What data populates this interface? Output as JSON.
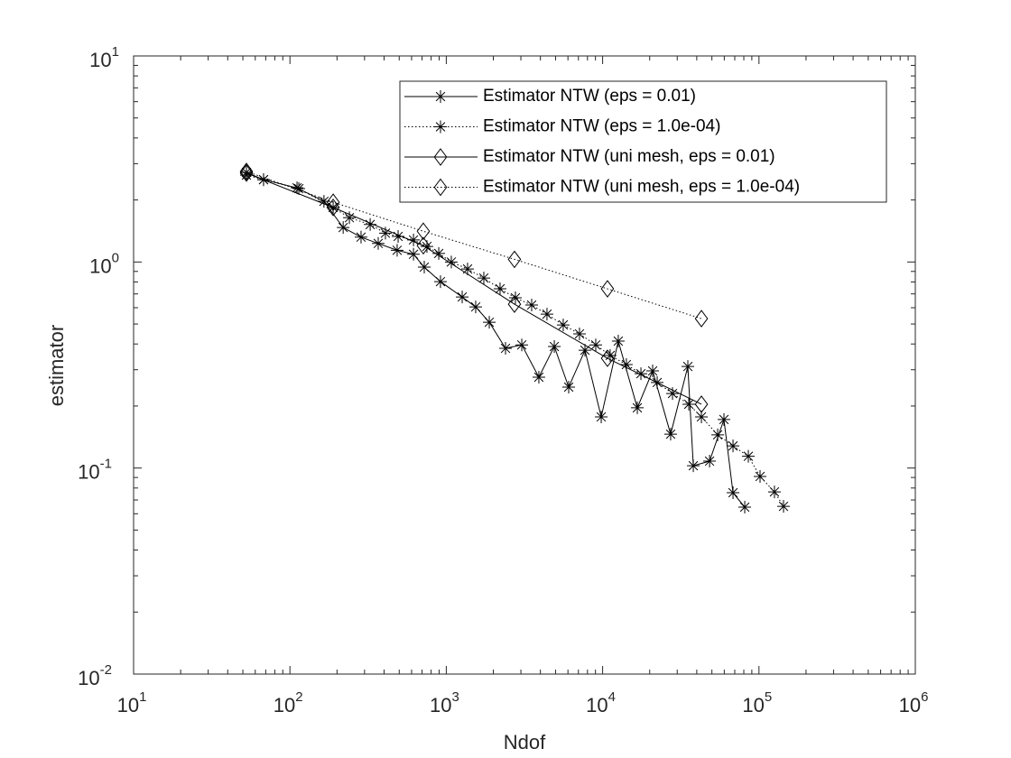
{
  "chart_data": {
    "type": "line",
    "x_label": "Ndof",
    "y_label": "estimator",
    "xscale": "log",
    "yscale": "log",
    "xlim": [
      10,
      1000000
    ],
    "ylim": [
      0.01,
      10
    ],
    "xticks": [
      {
        "value": 10,
        "label": "10",
        "exponent": "1"
      },
      {
        "value": 100,
        "label": "10",
        "exponent": "2"
      },
      {
        "value": 1000,
        "label": "10",
        "exponent": "3"
      },
      {
        "value": 10000,
        "label": "10",
        "exponent": "4"
      },
      {
        "value": 100000,
        "label": "10",
        "exponent": "5"
      },
      {
        "value": 1000000,
        "label": "10",
        "exponent": "6"
      }
    ],
    "yticks": [
      {
        "value": 0.01,
        "label": "10",
        "exponent": "-2"
      },
      {
        "value": 0.1,
        "label": "10",
        "exponent": "-1"
      },
      {
        "value": 1,
        "label": "10",
        "exponent": "0"
      },
      {
        "value": 10,
        "label": "10",
        "exponent": "1"
      }
    ],
    "grid": false,
    "legend": "upper right",
    "series": [
      {
        "name": "Estimator NTW (eps = 0.01)",
        "color": "#000000",
        "line": "solid",
        "marker": "asterisk",
        "x": [
          52.7,
          67.8,
          111,
          165,
          219,
          285,
          367,
          485,
          617,
          723,
          918,
          1264,
          1542,
          1884,
          2393,
          3040,
          3909,
          4909,
          6067,
          7709,
          9795,
          12590,
          16670,
          20890,
          27230,
          35080,
          38020,
          48310,
          59700,
          68230,
          81100
        ],
        "values": [
          2.72,
          2.51,
          2.29,
          1.97,
          1.47,
          1.32,
          1.23,
          1.14,
          1.09,
          0.944,
          0.803,
          0.676,
          0.605,
          0.51,
          0.381,
          0.396,
          0.276,
          0.389,
          0.247,
          0.373,
          0.177,
          0.413,
          0.196,
          0.296,
          0.146,
          0.311,
          0.1026,
          0.108,
          0.172,
          0.0759,
          0.0646
        ]
      },
      {
        "name": "Estimator NTW (eps = 1.0e-04)",
        "color": "#000000",
        "line": "dotted",
        "marker": "asterisk",
        "x": [
          52.7,
          67.8,
          114,
          189,
          240,
          326,
          408,
          492,
          617,
          752,
          895,
          1077,
          1368,
          1738,
          2208,
          2768,
          3516,
          4406,
          5598,
          7112,
          9036,
          11170,
          14190,
          17580,
          22330,
          27990,
          35560,
          42850,
          54450,
          68230,
          85500,
          101600,
          125600,
          143600
        ],
        "values": [
          2.64,
          2.51,
          2.27,
          1.84,
          1.64,
          1.52,
          1.38,
          1.33,
          1.28,
          1.19,
          1.1,
          1.0,
          0.925,
          0.836,
          0.741,
          0.67,
          0.618,
          0.558,
          0.495,
          0.448,
          0.396,
          0.352,
          0.318,
          0.287,
          0.26,
          0.23,
          0.204,
          0.177,
          0.145,
          0.128,
          0.114,
          0.091,
          0.0766,
          0.0652
        ]
      },
      {
        "name": "Estimator NTW (uni mesh, eps = 0.01)",
        "color": "#000000",
        "line": "solid",
        "marker": "diamond",
        "x": [
          52.7,
          189,
          713,
          2730,
          10740,
          42850
        ],
        "values": [
          2.7,
          1.84,
          1.2,
          0.624,
          0.341,
          0.204
        ]
      },
      {
        "name": "Estimator NTW (uni mesh, eps = 1.0e-04)",
        "color": "#000000",
        "line": "dotted",
        "marker": "diamond",
        "x": [
          52.7,
          189,
          713,
          2730,
          10740,
          42850
        ],
        "values": [
          2.75,
          1.95,
          1.41,
          1.03,
          0.741,
          0.531
        ]
      }
    ]
  }
}
